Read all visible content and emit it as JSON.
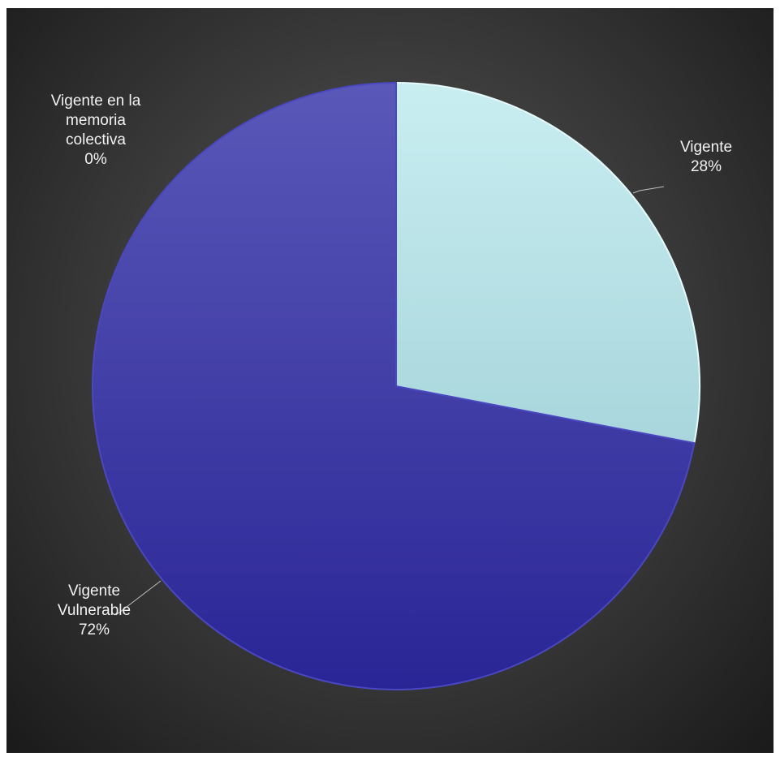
{
  "chart_data": {
    "type": "pie",
    "title": "",
    "start_angle_deg": 0,
    "direction": "clockwise",
    "slices": [
      {
        "label_lines": [
          "Vigente"
        ],
        "value": 28,
        "value_label": "28%",
        "color": "#c9eef1",
        "color_dark": "#a8d6dc"
      },
      {
        "label_lines": [
          "Vigente",
          "Vulnerable"
        ],
        "value": 72,
        "value_label": "72%",
        "color": "#3a36b0",
        "color_dark": "#2a2596"
      },
      {
        "label_lines": [
          "Vigente en la",
          "memoria",
          "colectiva"
        ],
        "value": 0,
        "value_label": "0%",
        "color": "#5a56c0",
        "color_dark": "#4a46b0"
      }
    ],
    "background": "#3a3a3a",
    "legend": "none",
    "label_color": "#f2f2f2"
  }
}
